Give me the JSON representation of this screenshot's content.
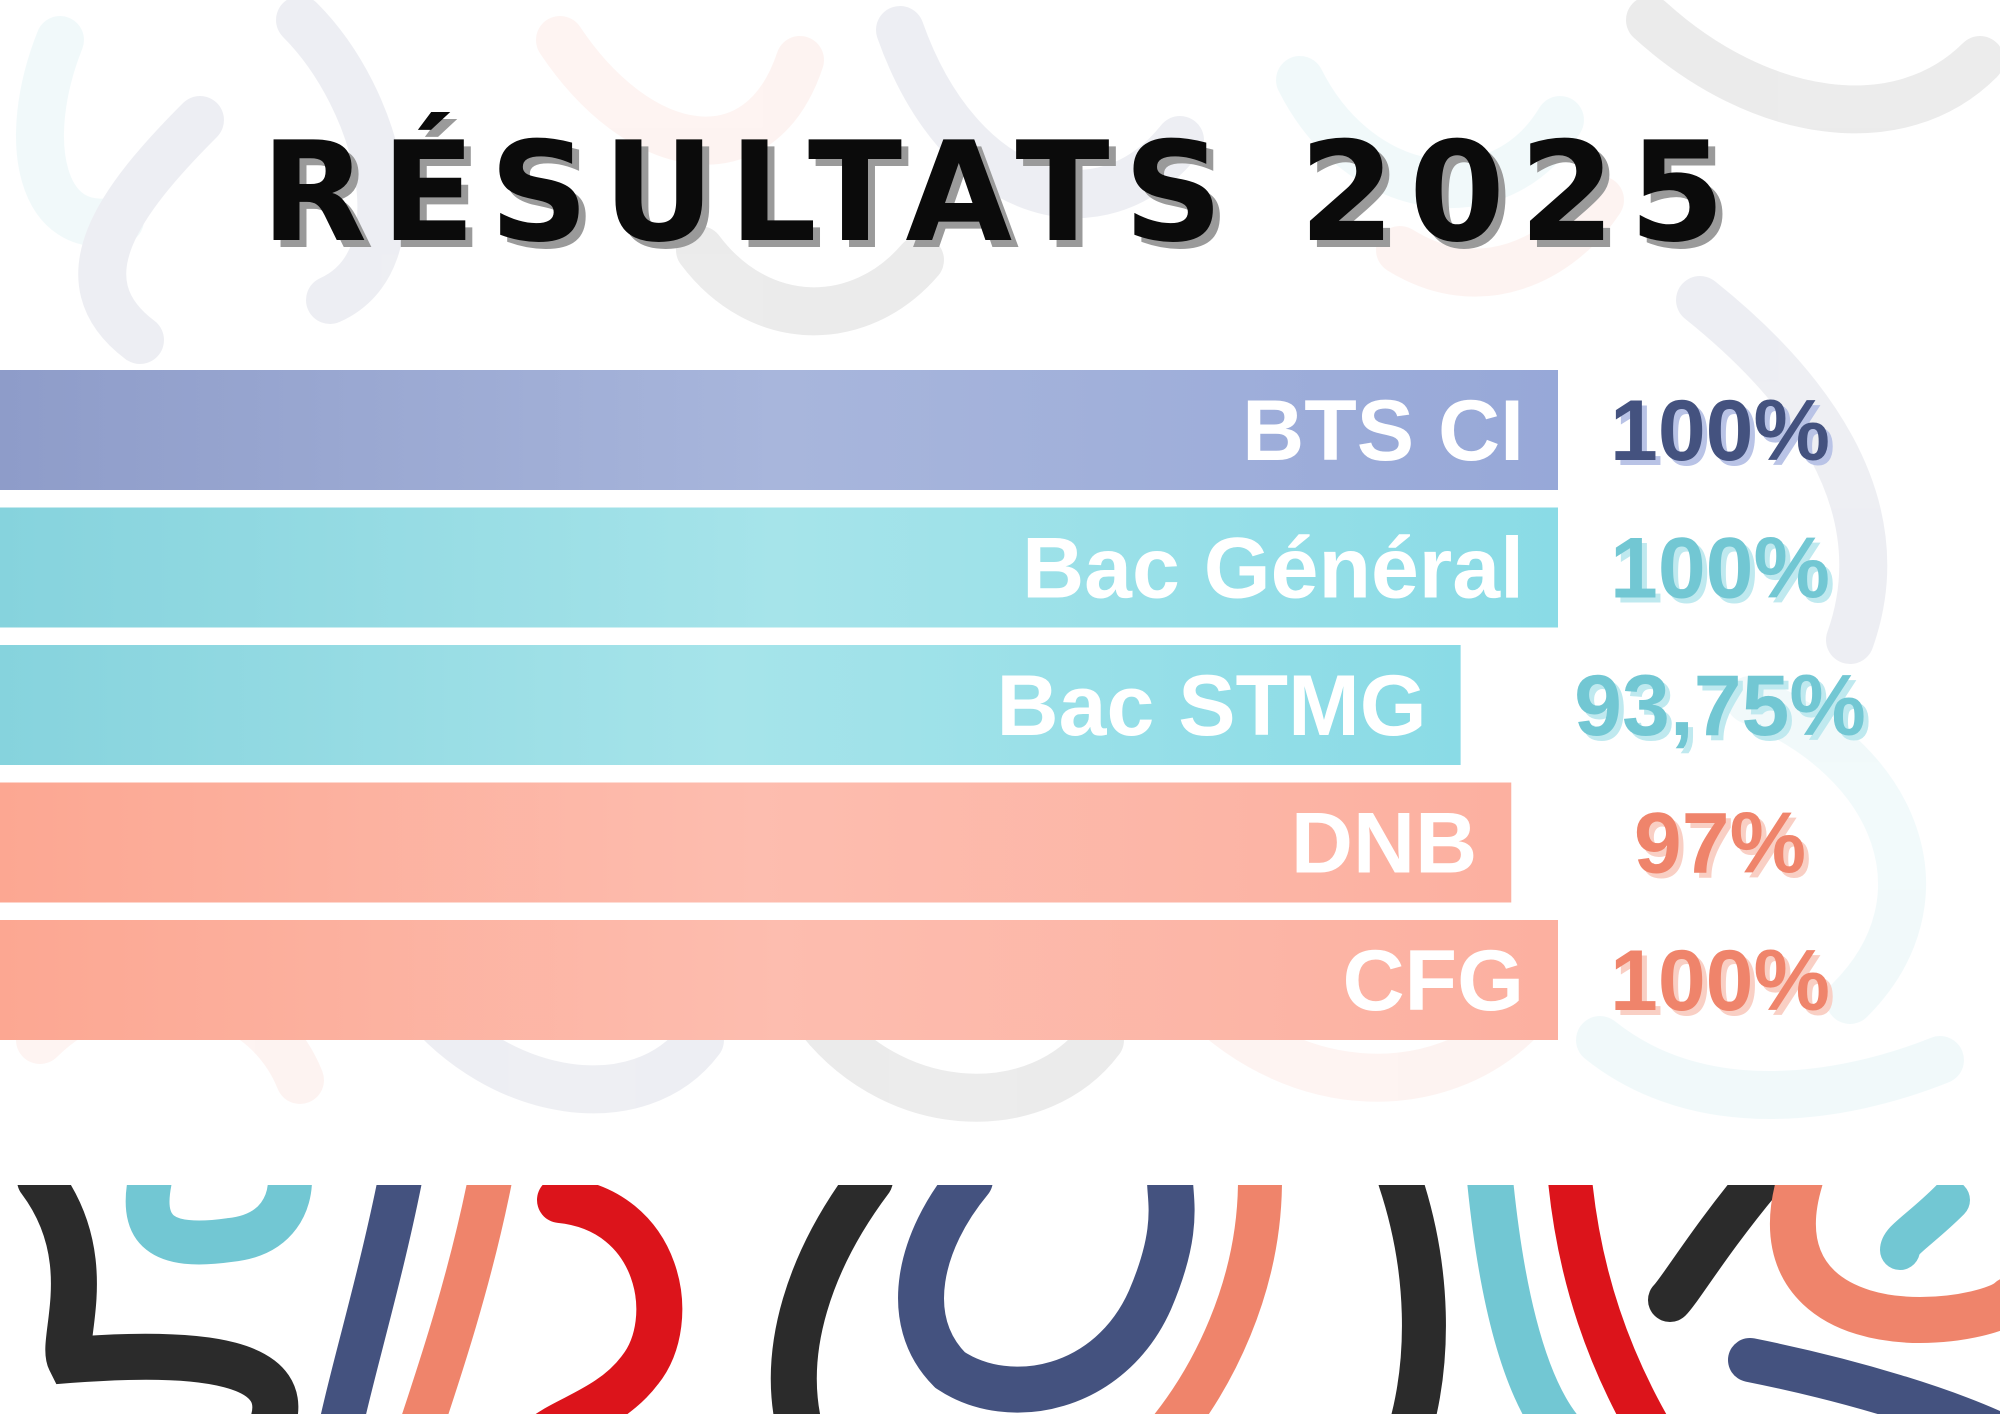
{
  "title": "RÉSULTATS  2025",
  "colors": {
    "navy": "#44527f",
    "cyan": "#72c7d3",
    "salmon": "#ef846b",
    "red": "#dc141b",
    "black": "#2b2b2b",
    "bar_navy": "#9aa8d6",
    "bar_cyan": "#93dce6",
    "bar_salmon": "#fcb0a0"
  },
  "chart_data": {
    "type": "bar",
    "orientation": "horizontal",
    "categories": [
      "BTS CI",
      "Bac Général",
      "Bac STMG",
      "DNB",
      "CFG"
    ],
    "values": [
      100,
      100,
      93.75,
      97,
      100
    ],
    "value_labels": [
      "100%",
      "100%",
      "93,75%",
      "97%",
      "100%"
    ],
    "xlim": [
      0,
      100
    ],
    "grid": false,
    "legend": "none"
  }
}
